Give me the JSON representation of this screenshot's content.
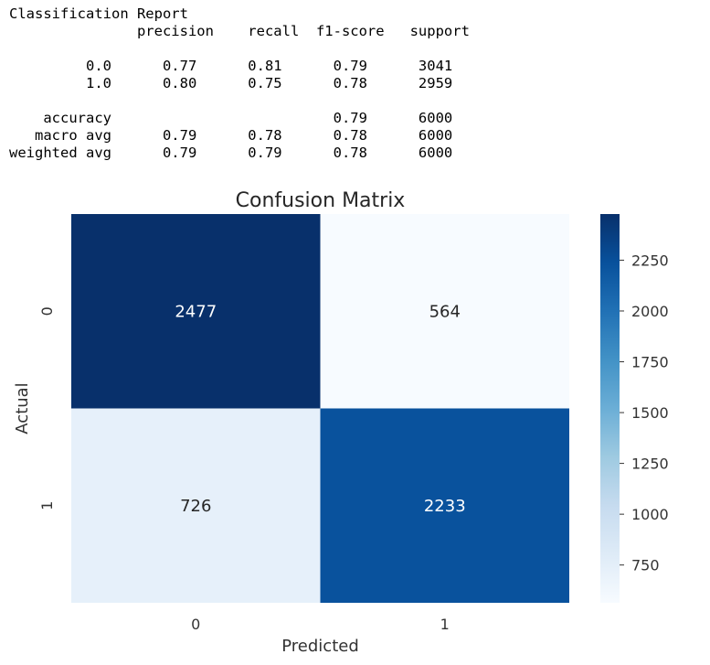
{
  "report": {
    "title": "Classification Report",
    "header": {
      "precision": "precision",
      "recall": "recall",
      "f1": "f1-score",
      "support": "support"
    },
    "class_rows": [
      {
        "label": "0.0",
        "precision": "0.77",
        "recall": "0.81",
        "f1": "0.79",
        "support": "3041"
      },
      {
        "label": "1.0",
        "precision": "0.80",
        "recall": "0.75",
        "f1": "0.78",
        "support": "2959"
      }
    ],
    "summary_rows": [
      {
        "label": "accuracy",
        "precision": "",
        "recall": "",
        "f1": "0.79",
        "support": "6000"
      },
      {
        "label": "macro avg",
        "precision": "0.79",
        "recall": "0.78",
        "f1": "0.78",
        "support": "6000"
      },
      {
        "label": "weighted avg",
        "precision": "0.79",
        "recall": "0.79",
        "f1": "0.78",
        "support": "6000"
      }
    ]
  },
  "chart_data": {
    "type": "heatmap",
    "title": "Confusion Matrix",
    "xlabel": "Predicted",
    "ylabel": "Actual",
    "x_categories": [
      "0",
      "1"
    ],
    "y_categories": [
      "0",
      "1"
    ],
    "matrix": [
      [
        2477,
        564
      ],
      [
        726,
        2233
      ]
    ],
    "colormap": "Blues",
    "vmin": 564,
    "vmax": 2477,
    "colorbar_ticks": [
      750,
      1000,
      1250,
      1500,
      1750,
      2000,
      2250
    ],
    "colors": {
      "low": "#f7fbff",
      "high": "#08306b"
    }
  }
}
